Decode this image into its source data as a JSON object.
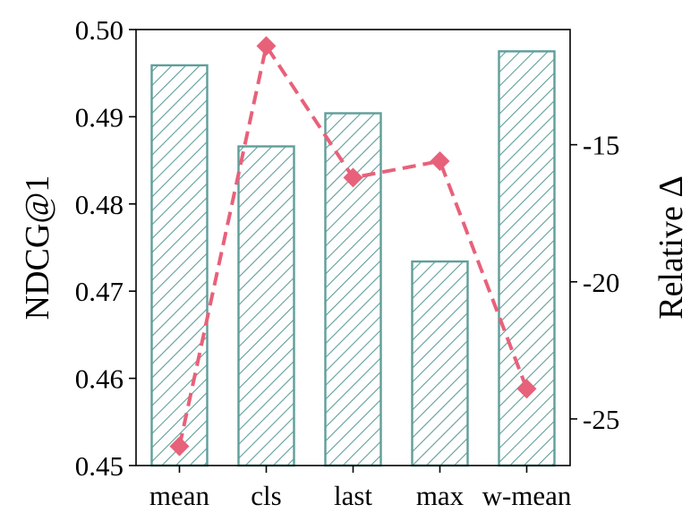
{
  "chart_data": {
    "type": "bar",
    "categories": [
      "mean",
      "cls",
      "last",
      "max",
      "w-mean"
    ],
    "series": [
      {
        "values": [
          0.4959,
          0.4866,
          0.4904,
          0.4734,
          0.4975
        ],
        "axis": "left",
        "mark": "hatched-bar"
      },
      {
        "values": [
          -26.0,
          -11.4,
          -16.2,
          -15.6,
          -23.9
        ],
        "axis": "right",
        "mark": "dashed-line-diamond"
      }
    ],
    "ylabel": "NDCG@1",
    "ylabel_right": "Relative Δ",
    "ylim": [
      0.45,
      0.5
    ],
    "ylim_right": [
      -26.7,
      -10.8
    ],
    "yticks": [
      0.45,
      0.46,
      0.47,
      0.48,
      0.49,
      0.5
    ],
    "ytick_labels": [
      "0.45",
      "0.46",
      "0.47",
      "0.48",
      "0.49",
      "0.50"
    ],
    "yticks_right": [
      -25,
      -20,
      -15
    ],
    "ytick_labels_right": [
      "-25",
      "-20",
      "-15"
    ],
    "grid": false,
    "colors": {
      "bar_edge": "#5f9e9a",
      "line": "#e8617a"
    }
  }
}
